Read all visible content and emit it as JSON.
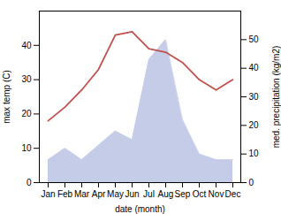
{
  "chart_data": {
    "type": "line",
    "categories": [
      "Jan",
      "Feb",
      "Mar",
      "Apr",
      "May",
      "Jun",
      "Jul",
      "Aug",
      "Sep",
      "Oct",
      "Nov",
      "Dec"
    ],
    "xlabel": "date (month)",
    "ylabel": "max temp (C)",
    "y2label": "med. precipitation (kg/m2)",
    "ylim": [
      0,
      50
    ],
    "yticks": [
      0,
      10,
      20,
      30,
      40
    ],
    "y2lim": [
      0,
      60
    ],
    "y2ticks": [
      0,
      10,
      20,
      30,
      40,
      50
    ],
    "series": [
      {
        "type": "area",
        "axis": "y2",
        "color": "#c5cce8",
        "values": [
          8,
          12,
          8,
          13,
          18,
          15,
          43,
          50,
          22,
          10,
          8,
          8
        ]
      },
      {
        "type": "line",
        "color": "#c0504d",
        "values": [
          18,
          22,
          27,
          33,
          43,
          44,
          39,
          38,
          35,
          30,
          27,
          30
        ]
      }
    ]
  }
}
